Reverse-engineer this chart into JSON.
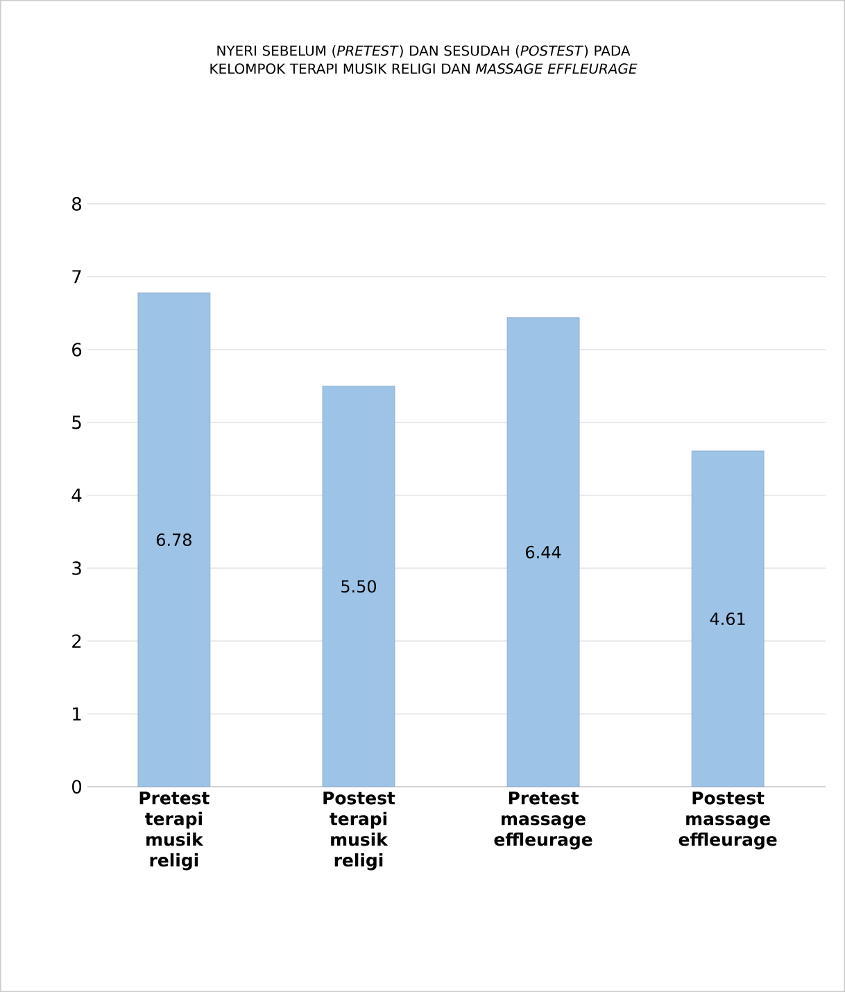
{
  "chart_data": {
    "type": "bar",
    "title": "NYERI SEBELUM (*PRETEST*) DAN SESUDAH (*POSTEST*) PADA KELOMPOK TERAPI MUSIK RELIGI DAN *MASSAGE EFFLEURAGE*",
    "categories": [
      "Pretest terapi musik religi",
      "Postest terapi musik religi",
      "Pretest massage effleurage",
      "Postest massage effleurage"
    ],
    "values": [
      6.78,
      5.5,
      6.44,
      4.61
    ],
    "value_labels": [
      "6.78",
      "5.50",
      "6.44",
      "4.61"
    ],
    "color": "#9dc3e6",
    "ylim": [
      0,
      8
    ],
    "yticks": [
      0,
      1,
      2,
      3,
      4,
      5,
      6,
      7,
      8
    ],
    "grid": "y"
  }
}
